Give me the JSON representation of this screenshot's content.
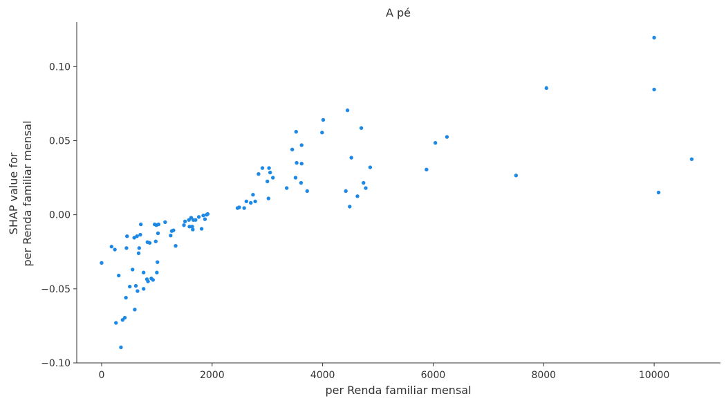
{
  "chart_data": {
    "type": "scatter",
    "title": "A pé",
    "xlabel": "per Renda familiar mensal",
    "ylabel_lines": [
      "SHAP value for",
      "per Renda familiar mensal"
    ],
    "xlim": [
      -450,
      11200
    ],
    "ylim": [
      -0.1,
      0.13
    ],
    "x_ticks": [
      0,
      2000,
      4000,
      6000,
      8000,
      10000
    ],
    "x_tick_labels": [
      "0",
      "2000",
      "4000",
      "6000",
      "8000",
      "10000"
    ],
    "y_ticks": [
      -0.1,
      -0.05,
      0.0,
      0.05,
      0.1
    ],
    "y_tick_labels": [
      "−0.10",
      "−0.05",
      "0.00",
      "0.05",
      "0.10"
    ],
    "grid": false,
    "color": "#1e88e5",
    "points": [
      [
        0,
        -0.0325
      ],
      [
        180,
        -0.0215
      ],
      [
        240,
        -0.0235
      ],
      [
        260,
        -0.073
      ],
      [
        310,
        -0.041
      ],
      [
        350,
        -0.0895
      ],
      [
        380,
        -0.071
      ],
      [
        420,
        -0.0695
      ],
      [
        440,
        -0.056
      ],
      [
        450,
        -0.0225
      ],
      [
        460,
        -0.0145
      ],
      [
        510,
        -0.0485
      ],
      [
        560,
        -0.037
      ],
      [
        590,
        -0.0155
      ],
      [
        600,
        -0.064
      ],
      [
        620,
        -0.048
      ],
      [
        640,
        -0.0145
      ],
      [
        650,
        -0.0515
      ],
      [
        670,
        -0.026
      ],
      [
        680,
        -0.0225
      ],
      [
        700,
        -0.0135
      ],
      [
        710,
        -0.0065
      ],
      [
        760,
        -0.039
      ],
      [
        760,
        -0.05
      ],
      [
        820,
        -0.0435
      ],
      [
        830,
        -0.0185
      ],
      [
        840,
        -0.045
      ],
      [
        870,
        -0.019
      ],
      [
        900,
        -0.043
      ],
      [
        930,
        -0.044
      ],
      [
        960,
        -0.0065
      ],
      [
        980,
        -0.018
      ],
      [
        990,
        -0.007
      ],
      [
        1000,
        -0.039
      ],
      [
        1010,
        -0.032
      ],
      [
        1020,
        -0.0125
      ],
      [
        1030,
        -0.0065
      ],
      [
        1150,
        -0.005
      ],
      [
        1250,
        -0.014
      ],
      [
        1270,
        -0.011
      ],
      [
        1300,
        -0.0105
      ],
      [
        1340,
        -0.021
      ],
      [
        1490,
        -0.007
      ],
      [
        1510,
        -0.0045
      ],
      [
        1580,
        -0.0035
      ],
      [
        1590,
        -0.008
      ],
      [
        1620,
        -0.002
      ],
      [
        1640,
        -0.008
      ],
      [
        1650,
        -0.01
      ],
      [
        1660,
        -0.0035
      ],
      [
        1700,
        -0.0035
      ],
      [
        1760,
        -0.0015
      ],
      [
        1810,
        -0.0095
      ],
      [
        1840,
        -0.0005
      ],
      [
        1870,
        -0.003
      ],
      [
        1900,
        0.0
      ],
      [
        1920,
        0.0005
      ],
      [
        2460,
        0.0045
      ],
      [
        2490,
        0.005
      ],
      [
        2580,
        0.0045
      ],
      [
        2620,
        0.009
      ],
      [
        2700,
        0.008
      ],
      [
        2740,
        0.0135
      ],
      [
        2780,
        0.009
      ],
      [
        2840,
        0.0275
      ],
      [
        2910,
        0.0315
      ],
      [
        3000,
        0.0225
      ],
      [
        3020,
        0.011
      ],
      [
        3030,
        0.0315
      ],
      [
        3050,
        0.0285
      ],
      [
        3100,
        0.025
      ],
      [
        3350,
        0.018
      ],
      [
        3450,
        0.044
      ],
      [
        3510,
        0.025
      ],
      [
        3520,
        0.056
      ],
      [
        3530,
        0.035
      ],
      [
        3610,
        0.0215
      ],
      [
        3620,
        0.0345
      ],
      [
        3620,
        0.047
      ],
      [
        3720,
        0.016
      ],
      [
        3990,
        0.0555
      ],
      [
        4010,
        0.064
      ],
      [
        4420,
        0.016
      ],
      [
        4450,
        0.0705
      ],
      [
        4490,
        0.0055
      ],
      [
        4520,
        0.0385
      ],
      [
        4630,
        0.0125
      ],
      [
        4700,
        0.0585
      ],
      [
        4740,
        0.0215
      ],
      [
        4780,
        0.018
      ],
      [
        4860,
        0.032
      ],
      [
        5880,
        0.0305
      ],
      [
        6040,
        0.0485
      ],
      [
        6250,
        0.0525
      ],
      [
        7500,
        0.0265
      ],
      [
        8050,
        0.0855
      ],
      [
        10000,
        0.1195
      ],
      [
        10000,
        0.0845
      ],
      [
        10080,
        0.015
      ],
      [
        10680,
        0.0375
      ]
    ]
  }
}
